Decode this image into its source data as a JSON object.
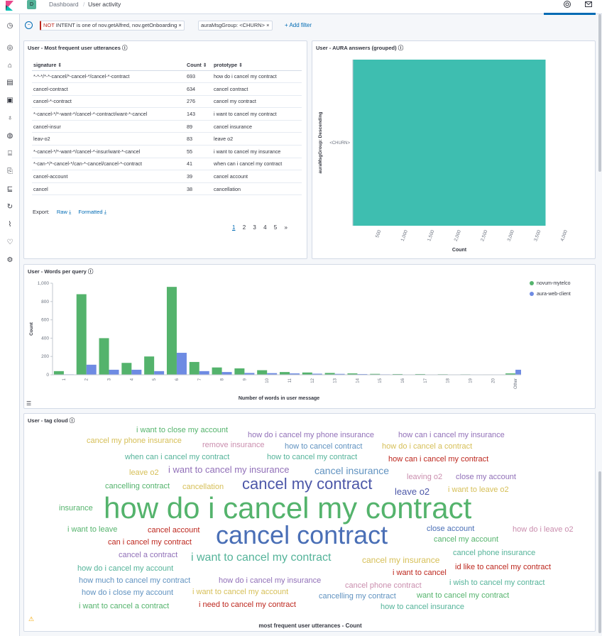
{
  "header": {
    "space_initial": "D",
    "breadcrumb_root": "Dashboard",
    "breadcrumb_separator": "/",
    "breadcrumb_current": "User activity"
  },
  "filters": {
    "pill1_neg": "NOT",
    "pill1_text": " INTENT is one of nov.getAlfred, nov.getOnboarding",
    "pill2_text": "auraMsgGroup: <CHURN>",
    "remove_glyph": "×",
    "add_filter": "+ Add filter"
  },
  "utterances_panel": {
    "title": "User - Most frequent user utterances",
    "columns": [
      "signature",
      "Count",
      "prototype"
    ],
    "rows": [
      {
        "signature": "*-*-*/*-*-cancel/*-cancel-*/cancel-*-contract",
        "count": "693",
        "prototype": "how do i cancel my contract"
      },
      {
        "signature": "cancel-contract",
        "count": "634",
        "prototype": "cancel contract"
      },
      {
        "signature": "cancel-*-contract",
        "count": "276",
        "prototype": "cancel my contract"
      },
      {
        "signature": "*-cancel-*/*-want-*/cancel-*-contract/want-*-cancel",
        "count": "143",
        "prototype": "i want to cancel my contract"
      },
      {
        "signature": "cancel-insur",
        "count": "89",
        "prototype": "cancel insurance"
      },
      {
        "signature": "leav-o2",
        "count": "83",
        "prototype": "leave o2"
      },
      {
        "signature": "*-cancel-*/*-want-*/cancel-*-insur/want-*-cancel",
        "count": "55",
        "prototype": "i want to cancel my insurance"
      },
      {
        "signature": "*-can-*/*-cancel-*/can-*-cancel/cancel-*-contract",
        "count": "41",
        "prototype": "when can i cancel my contract"
      },
      {
        "signature": "cancel-account",
        "count": "39",
        "prototype": "cancel account"
      },
      {
        "signature": "cancel",
        "count": "38",
        "prototype": "cancellation"
      }
    ],
    "export_label": "Export:",
    "export_raw": "Raw",
    "export_formatted": "Formatted",
    "pages": [
      "1",
      "2",
      "3",
      "4",
      "5"
    ],
    "next_glyph": "»"
  },
  "aura_panel": {
    "title": "User - AURA answers (grouped)",
    "chart_data": {
      "type": "bar",
      "orientation": "horizontal",
      "categories": [
        "<CHURN>"
      ],
      "values": [
        3620
      ],
      "xlabel": "Count",
      "ylabel": "auraMsgGroup: Descending",
      "xticks": [
        "500",
        "1,000",
        "1,500",
        "2,000",
        "2,500",
        "3,000",
        "3,500",
        "4,000"
      ],
      "xlim": [
        0,
        4000
      ],
      "color": "#3ebeb0"
    }
  },
  "words_panel": {
    "title": "User - Words per query",
    "chart_data": {
      "type": "bar",
      "categories": [
        "1",
        "2",
        "3",
        "4",
        "5",
        "6",
        "7",
        "8",
        "9",
        "10",
        "11",
        "12",
        "13",
        "14",
        "15",
        "16",
        "17",
        "18",
        "19",
        "20",
        "Other"
      ],
      "series": [
        {
          "name": "novum-mytelco",
          "color": "#54b36c",
          "values": [
            40,
            880,
            400,
            130,
            200,
            960,
            140,
            80,
            70,
            50,
            30,
            25,
            20,
            15,
            10,
            8,
            8,
            6,
            5,
            4,
            15
          ]
        },
        {
          "name": "aura-web-client",
          "color": "#6e8be3",
          "values": [
            5,
            110,
            55,
            55,
            40,
            240,
            40,
            30,
            20,
            18,
            15,
            12,
            10,
            8,
            5,
            4,
            4,
            3,
            3,
            2,
            55
          ]
        }
      ],
      "xlabel": "Number of words in user message",
      "ylabel": "Count",
      "yticks": [
        "0",
        "200",
        "400",
        "600",
        "800",
        "1,000"
      ],
      "ylim": [
        0,
        1000
      ],
      "legend_position": "right"
    }
  },
  "cloud_panel": {
    "title": "User - tag cloud",
    "footer": "most frequent user utterances - Count",
    "words": [
      {
        "text": "i want to close my account",
        "color": "#54b36c"
      },
      {
        "text": "how do i cancel my phone insurance",
        "color": "#9170b8"
      },
      {
        "text": "how can i cancel my insurance",
        "color": "#9170b8"
      },
      {
        "text": "cancel my phone insurance",
        "color": "#d6bf57"
      },
      {
        "text": "remove insurance",
        "color": "#ca8eae"
      },
      {
        "text": "how to cancel contract",
        "color": "#6092c0"
      },
      {
        "text": "how do i cancel a contract",
        "color": "#d6bf57"
      },
      {
        "text": "when can i cancel my contract",
        "color": "#54b399"
      },
      {
        "text": "how to cancel my contract",
        "color": "#54b399"
      },
      {
        "text": "how can i cancel my contract",
        "color": "#bd271e"
      },
      {
        "text": "leave o2",
        "color": "#d6bf57"
      },
      {
        "text": "i want to cancel my insurance",
        "color": "#9170b8"
      },
      {
        "text": "cancel insurance",
        "color": "#6092c0"
      },
      {
        "text": "leaving o2",
        "color": "#ca8eae"
      },
      {
        "text": "close my account",
        "color": "#9170b8"
      },
      {
        "text": "cancelling contract",
        "color": "#54b36c"
      },
      {
        "text": "cancellation",
        "color": "#d6bf57"
      },
      {
        "text": "cancel my contract",
        "color": "#4c57a8"
      },
      {
        "text": "leave o2",
        "color": "#4c57a8"
      },
      {
        "text": "i want to leave o2",
        "color": "#d6bf57"
      },
      {
        "text": "insurance",
        "color": "#54b36c"
      },
      {
        "text": "how do i cancel my contract",
        "color": "#54b36c"
      },
      {
        "text": "i want to leave",
        "color": "#54b36c"
      },
      {
        "text": "cancel account",
        "color": "#bd271e"
      },
      {
        "text": "cancel contract",
        "color": "#4a6fb6"
      },
      {
        "text": "close account",
        "color": "#4a6fb6"
      },
      {
        "text": "how do i leave o2",
        "color": "#ca8eae"
      },
      {
        "text": "can i cancel my contract",
        "color": "#bd271e"
      },
      {
        "text": "cancel my account",
        "color": "#54b36c"
      },
      {
        "text": "cancel a contract",
        "color": "#9170b8"
      },
      {
        "text": "i want to cancel my contract",
        "color": "#54b399"
      },
      {
        "text": "cancel my insurance",
        "color": "#d6bf57"
      },
      {
        "text": "cancel phone insurance",
        "color": "#54b399"
      },
      {
        "text": "how do i cancel my account",
        "color": "#54b399"
      },
      {
        "text": "i want to cancel",
        "color": "#bd271e"
      },
      {
        "text": "id like to cancel my contract",
        "color": "#bd271e"
      },
      {
        "text": "how much to cancel my contract",
        "color": "#6092c0"
      },
      {
        "text": "how do i cancel my insurance",
        "color": "#9170b8"
      },
      {
        "text": "i wish to cancel my contract",
        "color": "#54b399"
      },
      {
        "text": "cancel phone contract",
        "color": "#ca8eae"
      },
      {
        "text": "how do i close my account",
        "color": "#6092c0"
      },
      {
        "text": "i want to cancel my account",
        "color": "#d6bf57"
      },
      {
        "text": "cancelling my contract",
        "color": "#6092c0"
      },
      {
        "text": "want to cancel my contract",
        "color": "#54b36c"
      },
      {
        "text": "i want to cancel a contract",
        "color": "#54b36c"
      },
      {
        "text": "i need to cancel my contract",
        "color": "#bd271e"
      },
      {
        "text": "how to cancel insurance",
        "color": "#54b399"
      }
    ]
  }
}
